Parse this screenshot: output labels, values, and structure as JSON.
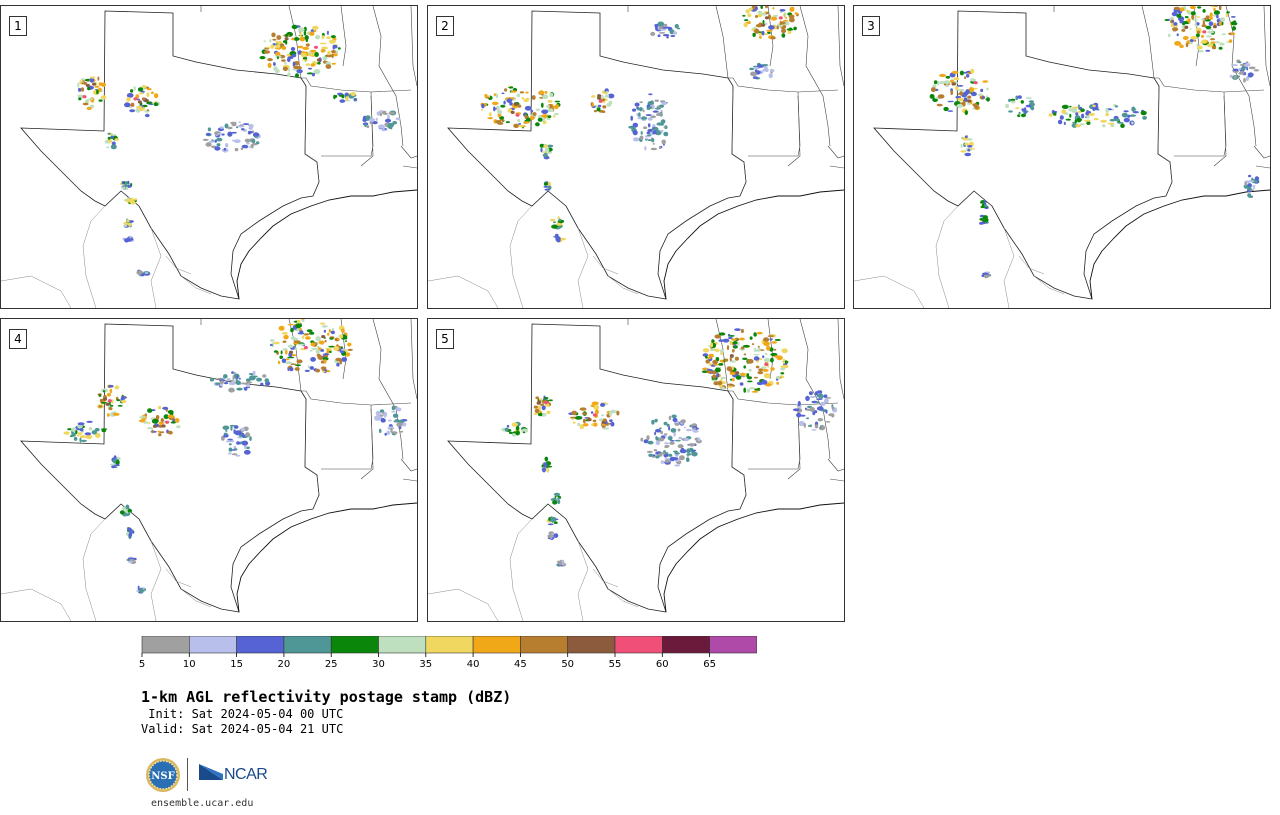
{
  "panels": [
    {
      "label": "1"
    },
    {
      "label": "2"
    },
    {
      "label": "3"
    },
    {
      "label": "4"
    },
    {
      "label": "5"
    }
  ],
  "colorbar": {
    "ticks": [
      "5",
      "10",
      "15",
      "20",
      "25",
      "30",
      "35",
      "40",
      "45",
      "50",
      "55",
      "60",
      "65"
    ],
    "colors": [
      "#a0a0a0",
      "#b8bfea",
      "#5563d4",
      "#4f9797",
      "#0a870a",
      "#bfe0bf",
      "#f0d860",
      "#f0a818",
      "#b87e30",
      "#8c5a3c",
      "#f05078",
      "#6c1a3c",
      "#b04aa8"
    ]
  },
  "title": "1-km AGL reflectivity postage stamp (dBZ)",
  "init": " Init: Sat 2024-05-04 00 UTC",
  "valid": "Valid: Sat 2024-05-04 21 UTC",
  "logos": {
    "nsf": "NSF",
    "ncar": "NCAR"
  },
  "footer_url": "ensemble.ucar.edu"
}
